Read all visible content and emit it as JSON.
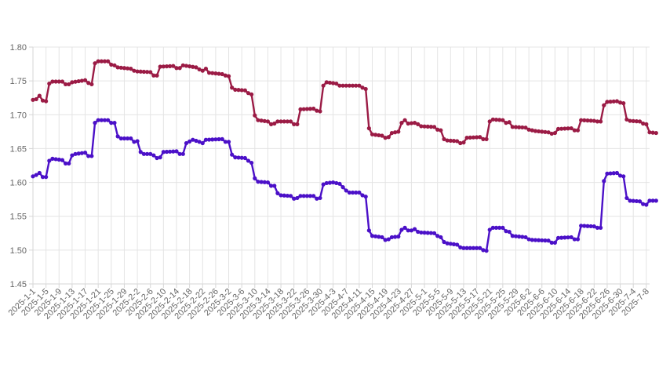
{
  "chart_data": {
    "type": "line",
    "title": "",
    "xlabel": "",
    "ylabel": "",
    "ylim": [
      1.45,
      1.8
    ],
    "y_ticks": [
      "1.45",
      "1.50",
      "1.55",
      "1.60",
      "1.65",
      "1.70",
      "1.75",
      "1.80"
    ],
    "x_ticks": [
      "2025-1-1",
      "2025-1-5",
      "2025-1-9",
      "2025-1-13",
      "2025-1-17",
      "2025-1-21",
      "2025-1-25",
      "2025-1-29",
      "2025-2-2",
      "2025-2-6",
      "2025-2-10",
      "2025-2-14",
      "2025-2-18",
      "2025-2-22",
      "2025-2-26",
      "2025-3-2",
      "2025-3-6",
      "2025-3-10",
      "2025-3-14",
      "2025-3-18",
      "2025-3-22",
      "2025-3-26",
      "2025-3-30",
      "2025-4-3",
      "2025-4-7",
      "2025-4-11",
      "2025-4-15",
      "2025-4-19",
      "2025-4-23",
      "2025-4-27",
      "2025-5-1",
      "2025-5-5",
      "2025-5-9",
      "2025-5-13",
      "2025-5-17",
      "2025-5-21",
      "2025-5-25",
      "2025-5-29",
      "2025-6-2",
      "2025-6-6",
      "2025-6-10",
      "2025-6-14",
      "2025-6-18",
      "2025-6-22",
      "2025-6-26",
      "2025-6-30",
      "2025-7-4",
      "2025-7-8"
    ],
    "x_start": "2025-1-1",
    "x_end": "2025-7-9",
    "grid": true,
    "legend": "none",
    "series": [
      {
        "color": "#9b1b45",
        "points": [
          [
            "2025-1-1",
            1.722
          ],
          [
            "2025-1-2",
            1.723
          ],
          [
            "2025-1-3",
            1.728
          ],
          [
            "2025-1-4",
            1.721
          ],
          [
            "2025-1-5",
            1.72
          ],
          [
            "2025-1-6",
            1.746
          ],
          [
            "2025-1-7",
            1.749
          ],
          [
            "2025-1-10",
            1.749
          ],
          [
            "2025-1-11",
            1.745
          ],
          [
            "2025-1-12",
            1.745
          ],
          [
            "2025-1-13",
            1.748
          ],
          [
            "2025-1-17",
            1.751
          ],
          [
            "2025-1-18",
            1.747
          ],
          [
            "2025-1-19",
            1.745
          ],
          [
            "2025-1-20",
            1.776
          ],
          [
            "2025-1-21",
            1.779
          ],
          [
            "2025-1-24",
            1.779
          ],
          [
            "2025-1-25",
            1.774
          ],
          [
            "2025-1-26",
            1.773
          ],
          [
            "2025-1-27",
            1.77
          ],
          [
            "2025-1-31",
            1.768
          ],
          [
            "2025-2-1",
            1.765
          ],
          [
            "2025-2-2",
            1.764
          ],
          [
            "2025-2-6",
            1.763
          ],
          [
            "2025-2-7",
            1.758
          ],
          [
            "2025-2-8",
            1.758
          ],
          [
            "2025-2-9",
            1.771
          ],
          [
            "2025-2-13",
            1.772
          ],
          [
            "2025-2-14",
            1.769
          ],
          [
            "2025-2-15",
            1.769
          ],
          [
            "2025-2-16",
            1.773
          ],
          [
            "2025-2-20",
            1.77
          ],
          [
            "2025-2-21",
            1.767
          ],
          [
            "2025-2-22",
            1.765
          ],
          [
            "2025-2-23",
            1.768
          ],
          [
            "2025-2-24",
            1.762
          ],
          [
            "2025-2-28",
            1.76
          ],
          [
            "2025-3-1",
            1.758
          ],
          [
            "2025-3-2",
            1.757
          ],
          [
            "2025-3-3",
            1.74
          ],
          [
            "2025-3-4",
            1.737
          ],
          [
            "2025-3-7",
            1.736
          ],
          [
            "2025-3-8",
            1.732
          ],
          [
            "2025-3-9",
            1.73
          ],
          [
            "2025-3-10",
            1.699
          ],
          [
            "2025-3-11",
            1.692
          ],
          [
            "2025-3-14",
            1.69
          ],
          [
            "2025-3-15",
            1.686
          ],
          [
            "2025-3-16",
            1.687
          ],
          [
            "2025-3-17",
            1.69
          ],
          [
            "2025-3-21",
            1.69
          ],
          [
            "2025-3-22",
            1.686
          ],
          [
            "2025-3-23",
            1.686
          ],
          [
            "2025-3-24",
            1.708
          ],
          [
            "2025-3-28",
            1.709
          ],
          [
            "2025-3-29",
            1.706
          ],
          [
            "2025-3-30",
            1.705
          ],
          [
            "2025-3-31",
            1.743
          ],
          [
            "2025-4-1",
            1.748
          ],
          [
            "2025-4-4",
            1.746
          ],
          [
            "2025-4-5",
            1.743
          ],
          [
            "2025-4-11",
            1.743
          ],
          [
            "2025-4-12",
            1.74
          ],
          [
            "2025-4-13",
            1.738
          ],
          [
            "2025-4-14",
            1.68
          ],
          [
            "2025-4-15",
            1.671
          ],
          [
            "2025-4-18",
            1.669
          ],
          [
            "2025-4-19",
            1.666
          ],
          [
            "2025-4-20",
            1.667
          ],
          [
            "2025-4-21",
            1.673
          ],
          [
            "2025-4-23",
            1.675
          ],
          [
            "2025-4-24",
            1.688
          ],
          [
            "2025-4-25",
            1.692
          ],
          [
            "2025-4-26",
            1.687
          ],
          [
            "2025-4-28",
            1.688
          ],
          [
            "2025-4-29",
            1.686
          ],
          [
            "2025-4-30",
            1.683
          ],
          [
            "2025-5-4",
            1.682
          ],
          [
            "2025-5-5",
            1.678
          ],
          [
            "2025-5-6",
            1.677
          ],
          [
            "2025-5-7",
            1.664
          ],
          [
            "2025-5-8",
            1.662
          ],
          [
            "2025-5-11",
            1.661
          ],
          [
            "2025-5-12",
            1.658
          ],
          [
            "2025-5-13",
            1.659
          ],
          [
            "2025-5-14",
            1.666
          ],
          [
            "2025-5-18",
            1.667
          ],
          [
            "2025-5-19",
            1.664
          ],
          [
            "2025-5-20",
            1.664
          ],
          [
            "2025-5-21",
            1.69
          ],
          [
            "2025-5-22",
            1.693
          ],
          [
            "2025-5-25",
            1.692
          ],
          [
            "2025-5-26",
            1.688
          ],
          [
            "2025-5-27",
            1.689
          ],
          [
            "2025-5-28",
            1.682
          ],
          [
            "2025-6-1",
            1.681
          ],
          [
            "2025-6-2",
            1.678
          ],
          [
            "2025-6-3",
            1.677
          ],
          [
            "2025-6-4",
            1.676
          ],
          [
            "2025-6-8",
            1.674
          ],
          [
            "2025-6-9",
            1.672
          ],
          [
            "2025-6-10",
            1.673
          ],
          [
            "2025-6-11",
            1.679
          ],
          [
            "2025-6-15",
            1.68
          ],
          [
            "2025-6-16",
            1.677
          ],
          [
            "2025-6-17",
            1.677
          ],
          [
            "2025-6-18",
            1.692
          ],
          [
            "2025-6-22",
            1.691
          ],
          [
            "2025-6-23",
            1.69
          ],
          [
            "2025-6-24",
            1.69
          ],
          [
            "2025-6-25",
            1.714
          ],
          [
            "2025-6-26",
            1.719
          ],
          [
            "2025-6-29",
            1.72
          ],
          [
            "2025-6-30",
            1.718
          ],
          [
            "2025-7-1",
            1.717
          ],
          [
            "2025-7-2",
            1.693
          ],
          [
            "2025-7-3",
            1.691
          ],
          [
            "2025-7-6",
            1.69
          ],
          [
            "2025-7-7",
            1.687
          ],
          [
            "2025-7-8",
            1.686
          ],
          [
            "2025-7-9",
            1.674
          ],
          [
            "2025-7-11",
            1.673
          ]
        ]
      },
      {
        "color": "#4b10c8",
        "points": [
          [
            "2025-1-1",
            1.609
          ],
          [
            "2025-1-2",
            1.611
          ],
          [
            "2025-1-3",
            1.614
          ],
          [
            "2025-1-4",
            1.608
          ],
          [
            "2025-1-5",
            1.608
          ],
          [
            "2025-1-6",
            1.632
          ],
          [
            "2025-1-7",
            1.635
          ],
          [
            "2025-1-10",
            1.633
          ],
          [
            "2025-1-11",
            1.628
          ],
          [
            "2025-1-12",
            1.628
          ],
          [
            "2025-1-13",
            1.64
          ],
          [
            "2025-1-14",
            1.642
          ],
          [
            "2025-1-17",
            1.644
          ],
          [
            "2025-1-18",
            1.639
          ],
          [
            "2025-1-19",
            1.639
          ],
          [
            "2025-1-20",
            1.688
          ],
          [
            "2025-1-21",
            1.692
          ],
          [
            "2025-1-24",
            1.692
          ],
          [
            "2025-1-25",
            1.688
          ],
          [
            "2025-1-26",
            1.688
          ],
          [
            "2025-1-27",
            1.668
          ],
          [
            "2025-1-28",
            1.665
          ],
          [
            "2025-1-31",
            1.665
          ],
          [
            "2025-2-1",
            1.66
          ],
          [
            "2025-2-2",
            1.661
          ],
          [
            "2025-2-3",
            1.645
          ],
          [
            "2025-2-4",
            1.642
          ],
          [
            "2025-2-6",
            1.642
          ],
          [
            "2025-2-7",
            1.64
          ],
          [
            "2025-2-8",
            1.636
          ],
          [
            "2025-2-9",
            1.637
          ],
          [
            "2025-2-10",
            1.645
          ],
          [
            "2025-2-14",
            1.646
          ],
          [
            "2025-2-15",
            1.642
          ],
          [
            "2025-2-16",
            1.642
          ],
          [
            "2025-2-17",
            1.658
          ],
          [
            "2025-2-19",
            1.663
          ],
          [
            "2025-2-21",
            1.66
          ],
          [
            "2025-2-22",
            1.658
          ],
          [
            "2025-2-23",
            1.663
          ],
          [
            "2025-2-28",
            1.664
          ],
          [
            "2025-3-1",
            1.66
          ],
          [
            "2025-3-2",
            1.66
          ],
          [
            "2025-3-3",
            1.641
          ],
          [
            "2025-3-4",
            1.637
          ],
          [
            "2025-3-7",
            1.636
          ],
          [
            "2025-3-8",
            1.632
          ],
          [
            "2025-3-9",
            1.629
          ],
          [
            "2025-3-10",
            1.606
          ],
          [
            "2025-3-11",
            1.601
          ],
          [
            "2025-3-14",
            1.6
          ],
          [
            "2025-3-15",
            1.595
          ],
          [
            "2025-3-16",
            1.595
          ],
          [
            "2025-3-17",
            1.584
          ],
          [
            "2025-3-18",
            1.581
          ],
          [
            "2025-3-21",
            1.58
          ],
          [
            "2025-3-22",
            1.576
          ],
          [
            "2025-3-23",
            1.577
          ],
          [
            "2025-3-24",
            1.58
          ],
          [
            "2025-3-28",
            1.58
          ],
          [
            "2025-3-29",
            1.576
          ],
          [
            "2025-3-30",
            1.577
          ],
          [
            "2025-3-31",
            1.597
          ],
          [
            "2025-4-1",
            1.599
          ],
          [
            "2025-4-3",
            1.6
          ],
          [
            "2025-4-5",
            1.598
          ],
          [
            "2025-4-6",
            1.593
          ],
          [
            "2025-4-7",
            1.588
          ],
          [
            "2025-4-8",
            1.585
          ],
          [
            "2025-4-11",
            1.585
          ],
          [
            "2025-4-12",
            1.581
          ],
          [
            "2025-4-13",
            1.579
          ],
          [
            "2025-4-14",
            1.529
          ],
          [
            "2025-4-15",
            1.521
          ],
          [
            "2025-4-18",
            1.519
          ],
          [
            "2025-4-19",
            1.515
          ],
          [
            "2025-4-20",
            1.516
          ],
          [
            "2025-4-21",
            1.519
          ],
          [
            "2025-4-23",
            1.52
          ],
          [
            "2025-4-24",
            1.53
          ],
          [
            "2025-4-25",
            1.533
          ],
          [
            "2025-4-26",
            1.529
          ],
          [
            "2025-4-27",
            1.529
          ],
          [
            "2025-4-28",
            1.531
          ],
          [
            "2025-4-29",
            1.527
          ],
          [
            "2025-4-30",
            1.526
          ],
          [
            "2025-5-4",
            1.525
          ],
          [
            "2025-5-5",
            1.521
          ],
          [
            "2025-5-6",
            1.519
          ],
          [
            "2025-5-7",
            1.512
          ],
          [
            "2025-5-8",
            1.51
          ],
          [
            "2025-5-11",
            1.508
          ],
          [
            "2025-5-12",
            1.504
          ],
          [
            "2025-5-13",
            1.503
          ],
          [
            "2025-5-18",
            1.503
          ],
          [
            "2025-5-19",
            1.5
          ],
          [
            "2025-5-20",
            1.499
          ],
          [
            "2025-5-21",
            1.53
          ],
          [
            "2025-5-22",
            1.533
          ],
          [
            "2025-5-25",
            1.533
          ],
          [
            "2025-5-26",
            1.528
          ],
          [
            "2025-5-27",
            1.527
          ],
          [
            "2025-5-28",
            1.521
          ],
          [
            "2025-6-1",
            1.519
          ],
          [
            "2025-6-2",
            1.516
          ],
          [
            "2025-6-3",
            1.515
          ],
          [
            "2025-6-8",
            1.514
          ],
          [
            "2025-6-9",
            1.511
          ],
          [
            "2025-6-10",
            1.511
          ],
          [
            "2025-6-11",
            1.518
          ],
          [
            "2025-6-15",
            1.519
          ],
          [
            "2025-6-16",
            1.516
          ],
          [
            "2025-6-17",
            1.516
          ],
          [
            "2025-6-18",
            1.536
          ],
          [
            "2025-6-22",
            1.535
          ],
          [
            "2025-6-23",
            1.533
          ],
          [
            "2025-6-24",
            1.533
          ],
          [
            "2025-6-25",
            1.602
          ],
          [
            "2025-6-26",
            1.613
          ],
          [
            "2025-6-29",
            1.614
          ],
          [
            "2025-6-30",
            1.61
          ],
          [
            "2025-7-1",
            1.609
          ],
          [
            "2025-7-2",
            1.577
          ],
          [
            "2025-7-3",
            1.573
          ],
          [
            "2025-7-6",
            1.572
          ],
          [
            "2025-7-7",
            1.568
          ],
          [
            "2025-7-8",
            1.567
          ],
          [
            "2025-7-9",
            1.573
          ],
          [
            "2025-7-11",
            1.573
          ]
        ]
      }
    ]
  }
}
